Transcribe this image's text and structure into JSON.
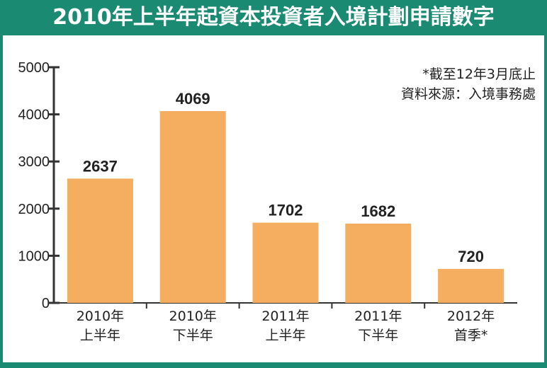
{
  "title": "2010年上半年起資本投資者入境計劃申請數字",
  "notes": {
    "line1": "*截至12年3月底止",
    "line2": "資料來源：入境事務處"
  },
  "colors": {
    "frame": "#1b8a72",
    "bar": "#f5ad60"
  },
  "chart_data": {
    "type": "bar",
    "title": "2010年上半年起資本投資者入境計劃申請數字",
    "categories": [
      "2010年 上半年",
      "2010年 下半年",
      "2011年 上半年",
      "2011年 下半年",
      "2012年 首季*"
    ],
    "category_lines": [
      [
        "2010年",
        "上半年"
      ],
      [
        "2010年",
        "下半年"
      ],
      [
        "2011年",
        "上半年"
      ],
      [
        "2011年",
        "下半年"
      ],
      [
        "2012年",
        "首季*"
      ]
    ],
    "values": [
      2637,
      4069,
      1702,
      1682,
      720
    ],
    "yticks": [
      0,
      1000,
      2000,
      3000,
      4000,
      5000
    ],
    "ylim": [
      0,
      5000
    ],
    "xlabel": "",
    "ylabel": "",
    "grid": false,
    "legend": "none"
  }
}
